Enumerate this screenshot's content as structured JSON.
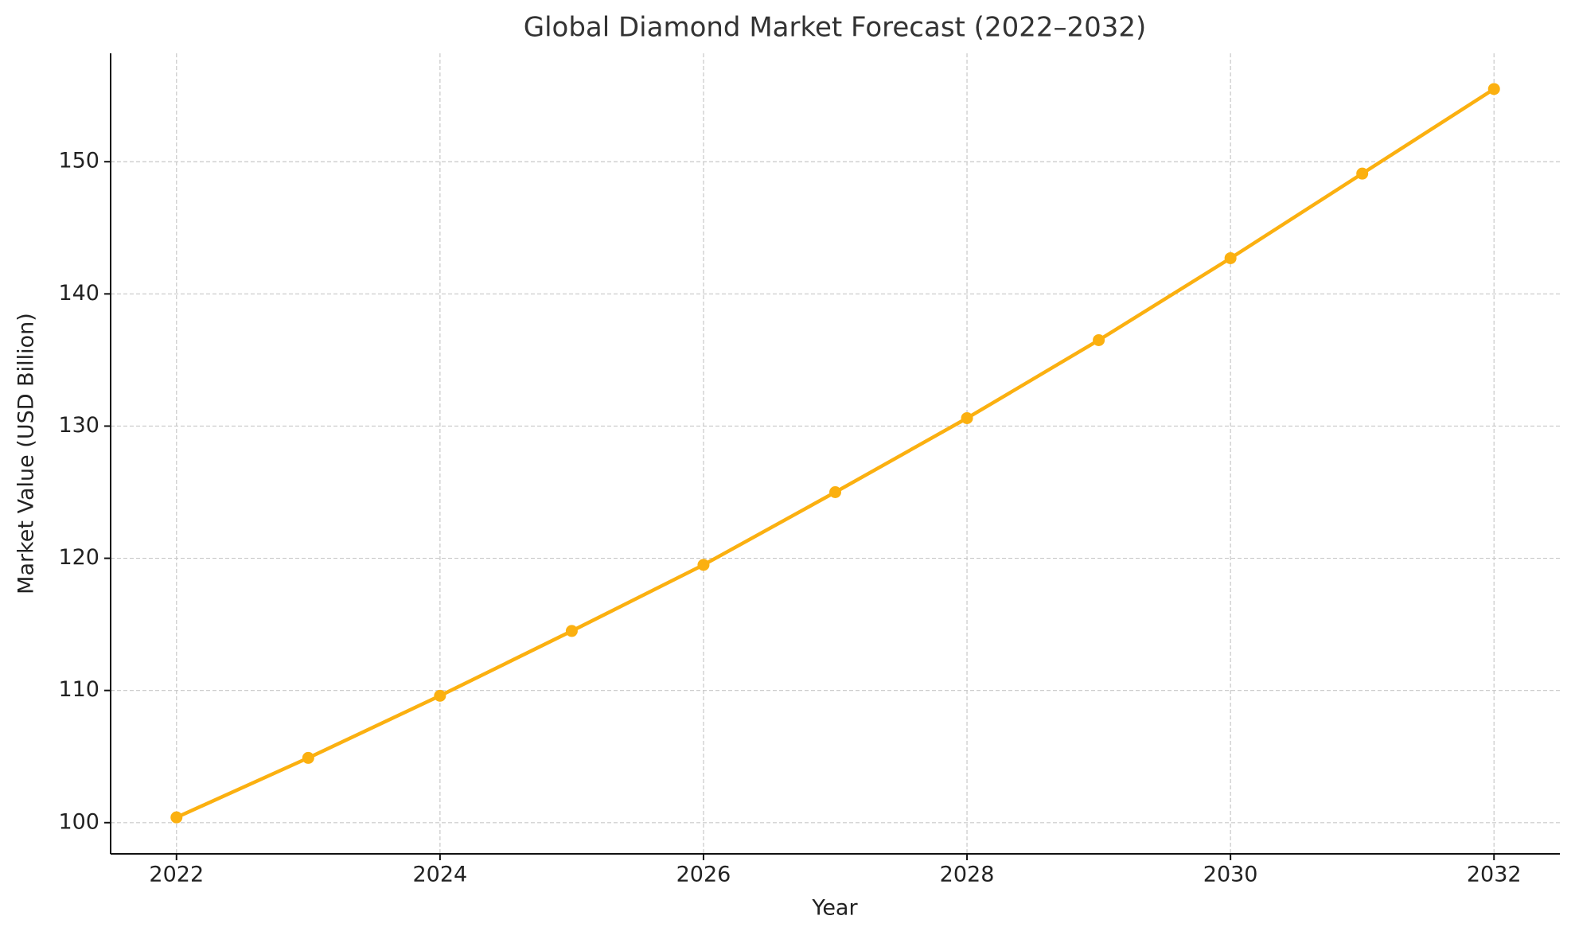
{
  "chart_data": {
    "type": "line",
    "title": "Global Diamond Market Forecast (2022–2032)",
    "x_label": "Year",
    "y_label": "Market Value (USD Billion)",
    "x": [
      2022,
      2023,
      2024,
      2025,
      2026,
      2027,
      2028,
      2029,
      2030,
      2031,
      2032
    ],
    "series": [
      {
        "name": "Market Value",
        "color": "#fbb010",
        "values": [
          100.4,
          104.9,
          109.6,
          114.5,
          119.5,
          125.0,
          130.6,
          136.5,
          142.7,
          149.1,
          155.5
        ]
      }
    ],
    "xlim": [
      2021.5,
      2032.5
    ],
    "xticks": [
      2022,
      2024,
      2026,
      2028,
      2030,
      2032
    ],
    "ylim": [
      97.64,
      158.2
    ],
    "yticks": [
      100,
      110,
      120,
      130,
      140,
      150
    ],
    "grid": true
  }
}
